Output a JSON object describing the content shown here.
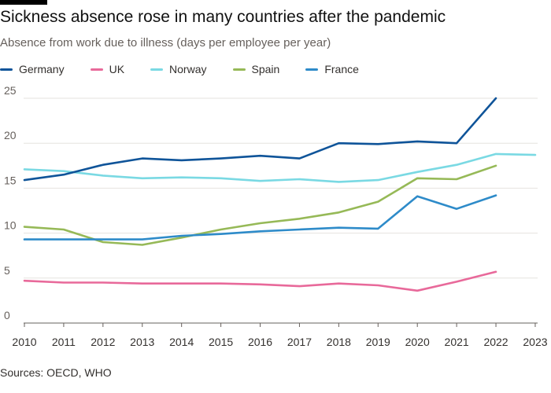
{
  "title": "Sickness absence rose in many countries after the pandemic",
  "subtitle": "Absence from work due to illness (days per employee per year)",
  "source": "Sources: OECD, WHO",
  "chart_data": {
    "type": "line",
    "x": [
      2010,
      2011,
      2012,
      2013,
      2014,
      2015,
      2016,
      2017,
      2018,
      2019,
      2020,
      2021,
      2022,
      2023
    ],
    "y_ticks": [
      0,
      5,
      10,
      15,
      20,
      25
    ],
    "ylim": [
      0,
      26
    ],
    "xlabel": "",
    "ylabel": "",
    "grid": true,
    "legend_position": "top-left",
    "series": [
      {
        "name": "Germany",
        "color": "#0f5499",
        "values": [
          15.9,
          16.5,
          17.6,
          18.3,
          18.1,
          18.3,
          18.6,
          18.3,
          20.0,
          19.9,
          20.2,
          20.0,
          25.0,
          null
        ]
      },
      {
        "name": "UK",
        "color": "#e8699a",
        "values": [
          4.7,
          4.5,
          4.5,
          4.4,
          4.4,
          4.4,
          4.3,
          4.1,
          4.4,
          4.2,
          3.6,
          4.6,
          5.7,
          null
        ]
      },
      {
        "name": "Norway",
        "color": "#7ad9e3",
        "values": [
          17.1,
          16.9,
          16.4,
          16.1,
          16.2,
          16.1,
          15.8,
          16.0,
          15.7,
          15.9,
          16.8,
          17.6,
          18.8,
          18.7
        ]
      },
      {
        "name": "Spain",
        "color": "#96b957",
        "values": [
          10.7,
          10.4,
          9.0,
          8.7,
          9.5,
          10.4,
          11.1,
          11.6,
          12.3,
          13.5,
          16.1,
          16.0,
          17.5,
          null
        ]
      },
      {
        "name": "France",
        "color": "#2e8bc9",
        "values": [
          9.3,
          9.3,
          9.3,
          9.3,
          9.7,
          9.9,
          10.2,
          10.4,
          10.6,
          10.5,
          14.1,
          12.7,
          14.2,
          null
        ]
      }
    ]
  }
}
